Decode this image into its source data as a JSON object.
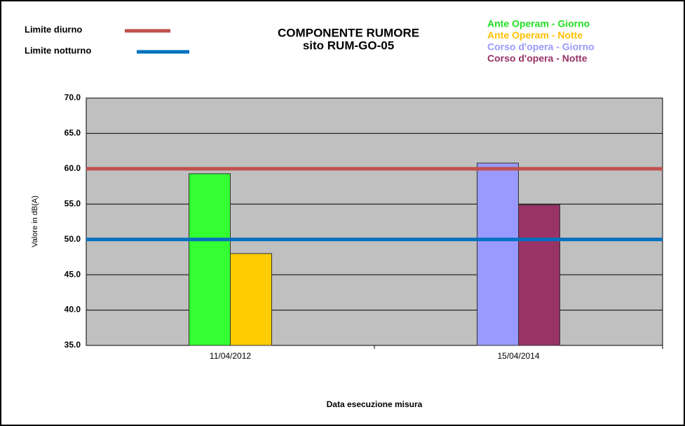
{
  "chart_data": {
    "type": "bar",
    "title": "COMPONENTE RUMORE",
    "subtitle": "sito RUM-GO-05",
    "x_label": "Data esecuzione misura",
    "y_label": "Valore in dB(A)",
    "categories": [
      "11/04/2012",
      "15/04/2014"
    ],
    "series": [
      {
        "name": "Ante Operam - Giorno",
        "color": "#33ff33",
        "text_color": "#22dd22",
        "values": [
          59.3,
          null
        ]
      },
      {
        "name": "Ante Operam - Notte",
        "color": "#ffcc00",
        "text_color": "#ffc000",
        "values": [
          48.0,
          null
        ]
      },
      {
        "name": "Corso d'opera - Giorno",
        "color": "#9999ff",
        "text_color": "#9999ff",
        "values": [
          null,
          60.8
        ]
      },
      {
        "name": "Corso d'opera - Notte",
        "color": "#993366",
        "text_color": "#993366",
        "values": [
          null,
          54.9
        ]
      }
    ],
    "reference_lines": [
      {
        "name": "Limite diurno",
        "value": 60,
        "color": "#c0504d"
      },
      {
        "name": "Limite notturno",
        "value": 50,
        "color": "#0070c0"
      }
    ],
    "ylim": [
      35,
      70
    ],
    "yticks": [
      {
        "value": 35,
        "label": "35.0"
      },
      {
        "value": 40,
        "label": "40.0"
      },
      {
        "value": 45,
        "label": "45.0"
      },
      {
        "value": 50,
        "label": "50.0"
      },
      {
        "value": 55,
        "label": "55.0"
      },
      {
        "value": 60,
        "label": "60.0"
      },
      {
        "value": 65,
        "label": "65.0"
      },
      {
        "value": 70,
        "label": "70.0"
      }
    ],
    "grid": true
  }
}
